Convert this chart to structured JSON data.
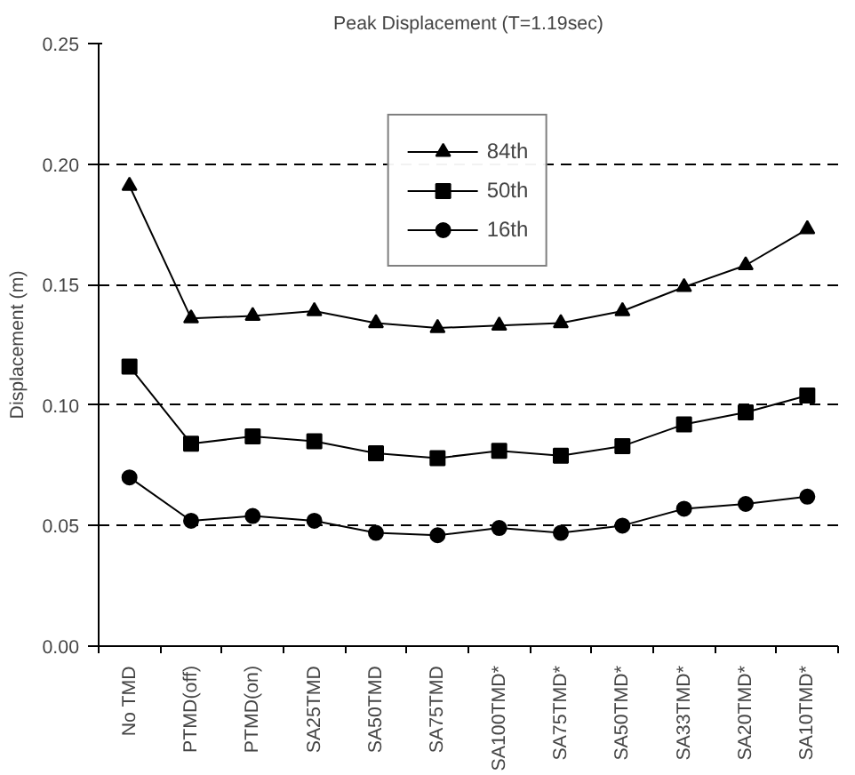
{
  "chart_data": {
    "type": "line",
    "title": "Peak Displacement (T=1.19sec)",
    "ylabel": "Displacement (m)",
    "categories": [
      "No TMD",
      "PTMD(off)",
      "PTMD(on)",
      "SA25TMD",
      "SA50TMD",
      "SA75TMD",
      "SA100TMD*",
      "SA75TMD*",
      "SA50TMD*",
      "SA33TMD*",
      "SA20TMD*",
      "SA10TMD*"
    ],
    "series": [
      {
        "name": "84th",
        "color": "#000000",
        "marker": "triangle",
        "values": [
          0.191,
          0.136,
          0.137,
          0.139,
          0.134,
          0.132,
          0.133,
          0.134,
          0.139,
          0.149,
          0.158,
          0.173
        ]
      },
      {
        "name": "50th",
        "color": "#000000",
        "marker": "square",
        "values": [
          0.116,
          0.084,
          0.087,
          0.085,
          0.08,
          0.078,
          0.081,
          0.079,
          0.083,
          0.092,
          0.097,
          0.104
        ]
      },
      {
        "name": "16th",
        "color": "#000000",
        "marker": "circle",
        "values": [
          0.07,
          0.052,
          0.054,
          0.052,
          0.047,
          0.046,
          0.049,
          0.047,
          0.05,
          0.057,
          0.059,
          0.062
        ]
      }
    ],
    "ylim": [
      0,
      0.25
    ],
    "yticks": [
      {
        "value": 0,
        "label": "0.00"
      },
      {
        "value": 0.05,
        "label": "0.05"
      },
      {
        "value": 0.1,
        "label": "0.10"
      },
      {
        "value": 0.15,
        "label": "0.15"
      },
      {
        "value": 0.2,
        "label": "0.20"
      },
      {
        "value": 0.25,
        "label": "0.25"
      }
    ],
    "grid": "y",
    "legend": "top",
    "line_style": "solid"
  }
}
